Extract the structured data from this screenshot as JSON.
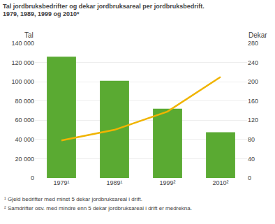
{
  "chart_data": {
    "type": "bar",
    "title": "Tal jordbruksbedrifter og dekar jordbruksareal per jordbruksbedrift.",
    "subtitle": "1979, 1989, 1999 og 2010*",
    "ylabel": "Tal",
    "y2label": "Dekar",
    "categories": [
      "1979¹",
      "1989¹",
      "1999²",
      "2010²"
    ],
    "series": [
      {
        "type": "bar",
        "color": "#5aaa32",
        "values": [
          126000,
          101000,
          72000,
          47600
        ]
      },
      {
        "type": "line",
        "color": "#f0b400",
        "axis": "y2",
        "values": [
          78,
          100,
          138,
          210
        ]
      }
    ],
    "ylim": [
      0,
      140000
    ],
    "yticks": [
      0,
      {
        "value": 20000,
        "label": "20 000"
      },
      {
        "value": 40000,
        "label": "40 000"
      },
      {
        "value": 60000,
        "label": "60 000"
      },
      {
        "value": 80000,
        "label": "80 000"
      },
      {
        "value": 100000,
        "label": "100 000"
      },
      {
        "value": 120000,
        "label": "120 000"
      },
      {
        "value": 140000,
        "label": "140 000"
      }
    ],
    "y2lim": [
      0,
      280
    ],
    "y2ticks": [
      0,
      40,
      80,
      120,
      160,
      200,
      240,
      280
    ],
    "grid": true,
    "annotations": [
      "¹ Gjeld bedrifter med minst 5 dekar jordbruksareal i drift.",
      "² Samdrifter osv. med mindre enn 5 dekar jordbruksareal i drift er medrekna."
    ]
  }
}
